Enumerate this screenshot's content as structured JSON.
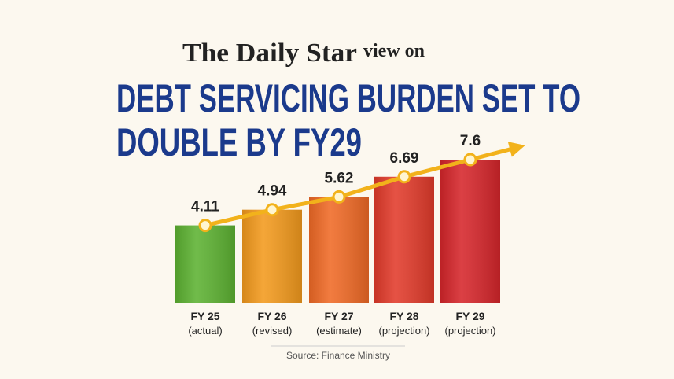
{
  "header": {
    "brand": "The Daily Star",
    "tagline": "view on"
  },
  "chart_data": {
    "type": "bar",
    "title": [
      "DEBT SERVICING BURDEN SET TO",
      "DOUBLE BY FY29"
    ],
    "categories": [
      "FY 25",
      "FY 26",
      "FY 27",
      "FY 28",
      "FY 29"
    ],
    "category_notes": [
      "(actual)",
      "(revised)",
      "(estimate)",
      "(projection)",
      "(projection)"
    ],
    "values": [
      4.11,
      4.94,
      5.62,
      6.69,
      7.6
    ],
    "colors": [
      "#5db232",
      "#f39a1d",
      "#f06a26",
      "#e23b2b",
      "#d6262b"
    ],
    "trend_color": "#f2b21b",
    "source": "Source: Finance Ministry"
  }
}
